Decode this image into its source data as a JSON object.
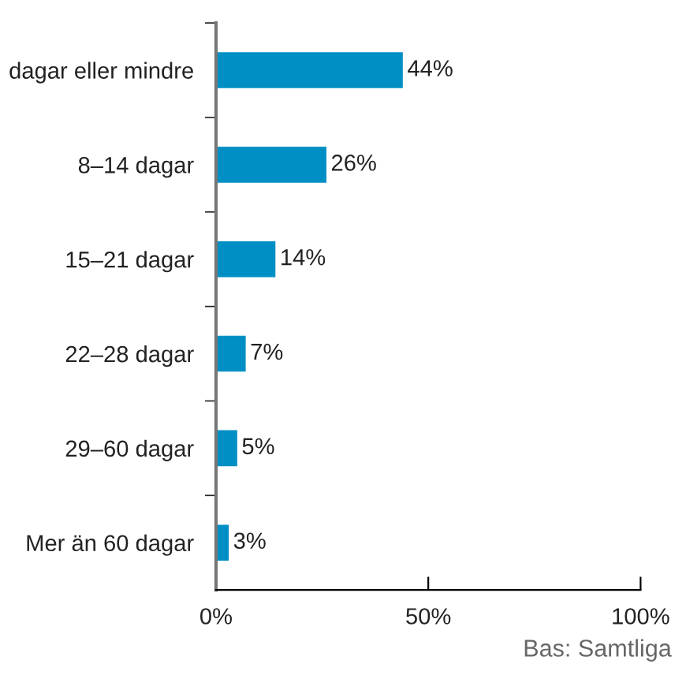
{
  "chart_data": {
    "type": "bar",
    "orientation": "horizontal",
    "categories": [
      "dagar eller mindre",
      "8–14 dagar",
      "15–21 dagar",
      "22–28 dagar",
      "29–60 dagar",
      "Mer än 60 dagar"
    ],
    "values": [
      44,
      26,
      14,
      7,
      5,
      3
    ],
    "value_labels": [
      "44%",
      "26%",
      "14%",
      "7%",
      "5%",
      "3%"
    ],
    "color": "#008fc5",
    "xlim": [
      0,
      100
    ],
    "xticks": [
      {
        "value": 0,
        "label": "0%"
      },
      {
        "value": 50,
        "label": "50%"
      },
      {
        "value": 100,
        "label": "100%"
      }
    ],
    "grid": false,
    "legend": false,
    "annotations": [
      "Bas: Samtliga"
    ]
  }
}
